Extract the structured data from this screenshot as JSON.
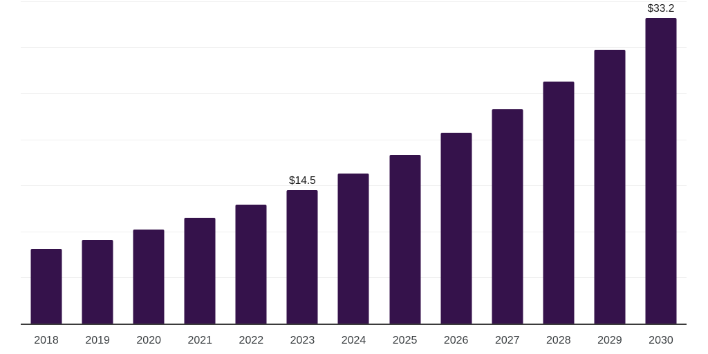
{
  "chart_data": {
    "type": "bar",
    "title": "",
    "xlabel": "",
    "ylabel": "",
    "categories": [
      "2018",
      "2019",
      "2020",
      "2021",
      "2022",
      "2023",
      "2024",
      "2025",
      "2026",
      "2027",
      "2028",
      "2029",
      "2030"
    ],
    "values": [
      8.1,
      9.1,
      10.2,
      11.5,
      12.9,
      14.5,
      16.3,
      18.3,
      20.7,
      23.3,
      26.3,
      29.7,
      33.2
    ],
    "data_labels": {
      "2023": "$14.5",
      "2030": "$33.2"
    },
    "ylim": [
      0,
      35
    ],
    "gridline_step": 5,
    "grid": true,
    "legend": false,
    "colors": {
      "bar": "#35124B",
      "gridline": "#efefef",
      "axis_line": "#3b3b3b",
      "tick_label": "#3c4043",
      "data_label": "#1a1a1a",
      "background": "#ffffff"
    }
  }
}
